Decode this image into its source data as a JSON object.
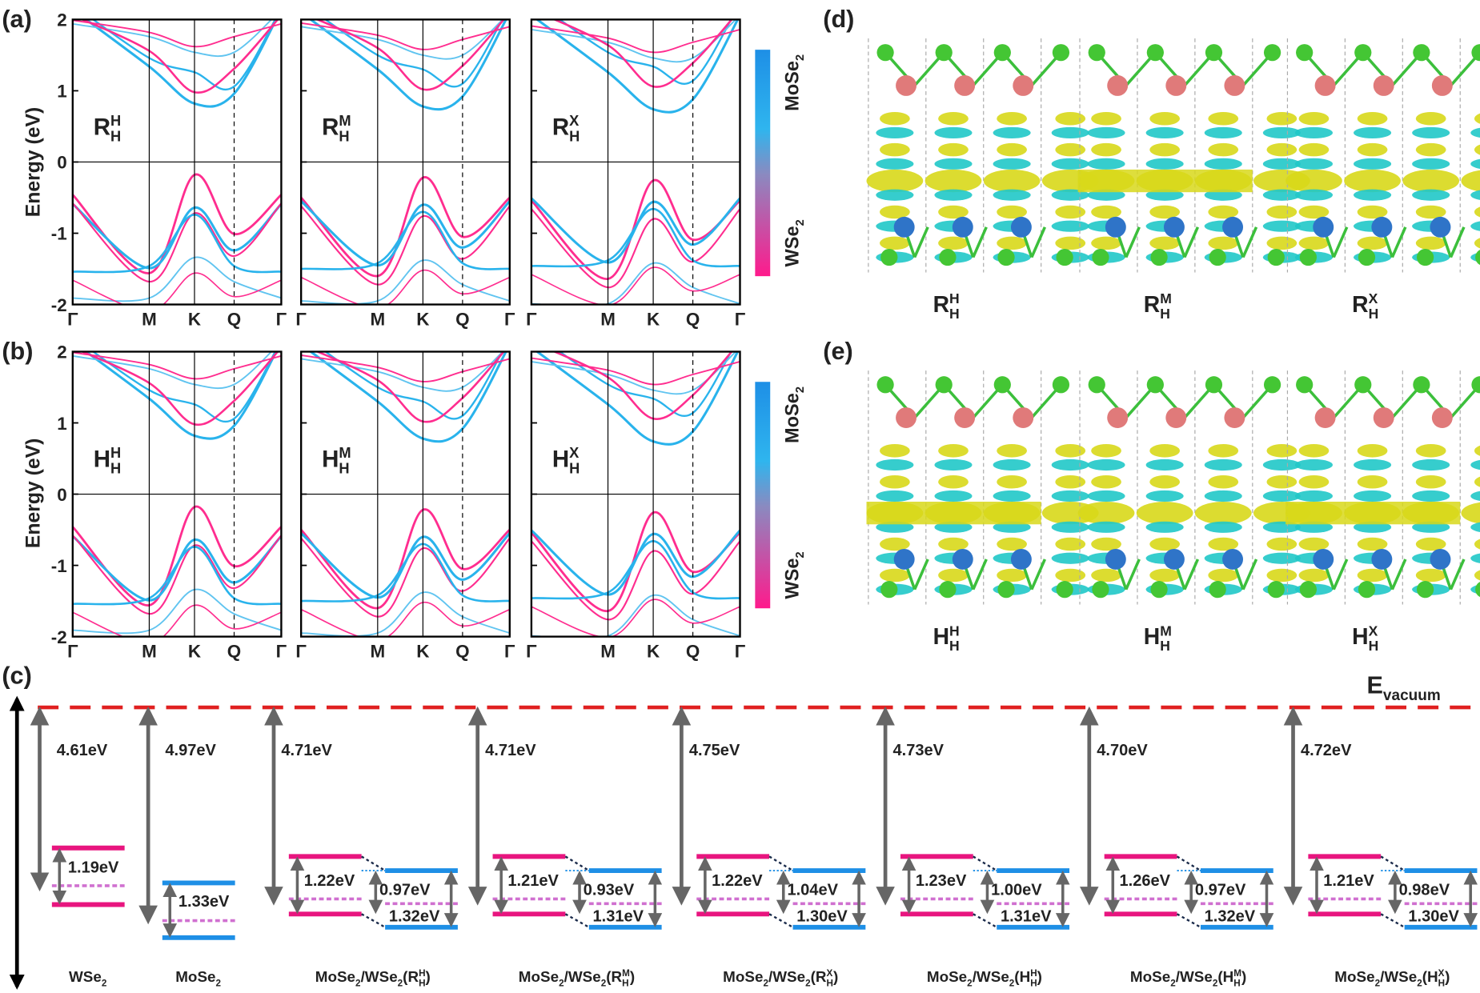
{
  "panels": {
    "a": "(a)",
    "b": "(b)",
    "c": "(c)",
    "d": "(d)",
    "e": "(e)"
  },
  "band_axis": {
    "y_label": "Energy (eV)",
    "ylim": [
      -2,
      2
    ],
    "yticks": [
      2,
      1,
      0,
      -1,
      -2
    ],
    "kpoints": [
      "Γ",
      "M",
      "K",
      "Q",
      "Γ"
    ]
  },
  "band_panels": [
    {
      "plots": [
        {
          "label": [
            {
              "text": "R"
            },
            {
              "text": "H",
              "pos": "sup"
            },
            {
              "text": "H",
              "pos": "sub"
            }
          ]
        },
        {
          "label": [
            {
              "text": "R"
            },
            {
              "text": "M",
              "pos": "sup"
            },
            {
              "text": "H",
              "pos": "sub"
            }
          ]
        },
        {
          "label": [
            {
              "text": "R"
            },
            {
              "text": "X",
              "pos": "sup"
            },
            {
              "text": "H",
              "pos": "sub"
            }
          ]
        }
      ]
    },
    {
      "plots": [
        {
          "label": [
            {
              "text": "H"
            },
            {
              "text": "H",
              "pos": "sup"
            },
            {
              "text": "H",
              "pos": "sub"
            }
          ]
        },
        {
          "label": [
            {
              "text": "H"
            },
            {
              "text": "M",
              "pos": "sup"
            },
            {
              "text": "H",
              "pos": "sub"
            }
          ]
        },
        {
          "label": [
            {
              "text": "H"
            },
            {
              "text": "X",
              "pos": "sup"
            },
            {
              "text": "H",
              "pos": "sub"
            }
          ]
        }
      ]
    }
  ],
  "colorbar": {
    "top": [
      {
        "text": "MoSe"
      },
      {
        "text": "2",
        "pos": "sub"
      }
    ],
    "bottom": [
      {
        "text": "WSe"
      },
      {
        "text": "2",
        "pos": "sub"
      }
    ]
  },
  "charge_panels": [
    {
      "labels": [
        [
          {
            "text": "R"
          },
          {
            "text": "H",
            "pos": "sup"
          },
          {
            "text": "H",
            "pos": "sub"
          }
        ],
        [
          {
            "text": "R"
          },
          {
            "text": "M",
            "pos": "sup"
          },
          {
            "text": "H",
            "pos": "sub"
          }
        ],
        [
          {
            "text": "R"
          },
          {
            "text": "X",
            "pos": "sup"
          },
          {
            "text": "H",
            "pos": "sub"
          }
        ]
      ]
    },
    {
      "labels": [
        [
          {
            "text": "H"
          },
          {
            "text": "H",
            "pos": "sup"
          },
          {
            "text": "H",
            "pos": "sub"
          }
        ],
        [
          {
            "text": "H"
          },
          {
            "text": "M",
            "pos": "sup"
          },
          {
            "text": "H",
            "pos": "sub"
          }
        ],
        [
          {
            "text": "H"
          },
          {
            "text": "X",
            "pos": "sup"
          },
          {
            "text": "H",
            "pos": "sub"
          }
        ]
      ]
    }
  ],
  "level_diagram": {
    "vacuum": [
      {
        "text": "E"
      },
      {
        "text": "vacuum",
        "pos": "sub"
      }
    ],
    "monolayers": [
      {
        "name": [
          {
            "text": "WSe"
          },
          {
            "text": "2",
            "pos": "sub"
          }
        ],
        "work_function": "4.61eV",
        "gap": "1.19eV",
        "band_color": "#e8157f"
      },
      {
        "name": [
          {
            "text": "MoSe"
          },
          {
            "text": "2",
            "pos": "sub"
          }
        ],
        "work_function": "4.97eV",
        "gap": "1.33eV",
        "band_color": "#1e8fe6"
      }
    ],
    "heterostructures": [
      {
        "name": [
          {
            "text": "MoSe"
          },
          {
            "text": "2",
            "pos": "sub"
          },
          {
            "text": "/WSe"
          },
          {
            "text": "2",
            "pos": "sub"
          },
          {
            "text": "(R"
          },
          {
            "text": "H",
            "pos": "sup"
          },
          {
            "text": "H",
            "pos": "sub"
          },
          {
            "text": ")"
          }
        ],
        "work_function": "4.71eV",
        "gap_wse2": "1.22eV",
        "gap_interface": "0.97eV",
        "gap_mose2": "1.32eV"
      },
      {
        "name": [
          {
            "text": "MoSe"
          },
          {
            "text": "2",
            "pos": "sub"
          },
          {
            "text": "/WSe"
          },
          {
            "text": "2",
            "pos": "sub"
          },
          {
            "text": "(R"
          },
          {
            "text": "M",
            "pos": "sup"
          },
          {
            "text": "H",
            "pos": "sub"
          },
          {
            "text": ")"
          }
        ],
        "work_function": "4.71eV",
        "gap_wse2": "1.21eV",
        "gap_interface": "0.93eV",
        "gap_mose2": "1.31eV"
      },
      {
        "name": [
          {
            "text": "MoSe"
          },
          {
            "text": "2",
            "pos": "sub"
          },
          {
            "text": "/WSe"
          },
          {
            "text": "2",
            "pos": "sub"
          },
          {
            "text": "(R"
          },
          {
            "text": "X",
            "pos": "sup"
          },
          {
            "text": "H",
            "pos": "sub"
          },
          {
            "text": ")"
          }
        ],
        "work_function": "4.75eV",
        "gap_wse2": "1.22eV",
        "gap_interface": "1.04eV",
        "gap_mose2": "1.30eV"
      },
      {
        "name": [
          {
            "text": "MoSe"
          },
          {
            "text": "2",
            "pos": "sub"
          },
          {
            "text": "/WSe"
          },
          {
            "text": "2",
            "pos": "sub"
          },
          {
            "text": "(H"
          },
          {
            "text": "H",
            "pos": "sup"
          },
          {
            "text": "H",
            "pos": "sub"
          },
          {
            "text": ")"
          }
        ],
        "work_function": "4.73eV",
        "gap_wse2": "1.23eV",
        "gap_interface": "1.00eV",
        "gap_mose2": "1.31eV"
      },
      {
        "name": [
          {
            "text": "MoSe"
          },
          {
            "text": "2",
            "pos": "sub"
          },
          {
            "text": "/WSe"
          },
          {
            "text": "2",
            "pos": "sub"
          },
          {
            "text": "(H"
          },
          {
            "text": "M",
            "pos": "sup"
          },
          {
            "text": "H",
            "pos": "sub"
          },
          {
            "text": ")"
          }
        ],
        "work_function": "4.70eV",
        "gap_wse2": "1.26eV",
        "gap_interface": "0.97eV",
        "gap_mose2": "1.32eV"
      },
      {
        "name": [
          {
            "text": "MoSe"
          },
          {
            "text": "2",
            "pos": "sub"
          },
          {
            "text": "/WSe"
          },
          {
            "text": "2",
            "pos": "sub"
          },
          {
            "text": "(H"
          },
          {
            "text": "X",
            "pos": "sup"
          },
          {
            "text": "H",
            "pos": "sub"
          },
          {
            "text": ")"
          }
        ],
        "work_function": "4.72eV",
        "gap_wse2": "1.21eV",
        "gap_interface": "0.98eV",
        "gap_mose2": "1.30eV"
      }
    ]
  }
}
